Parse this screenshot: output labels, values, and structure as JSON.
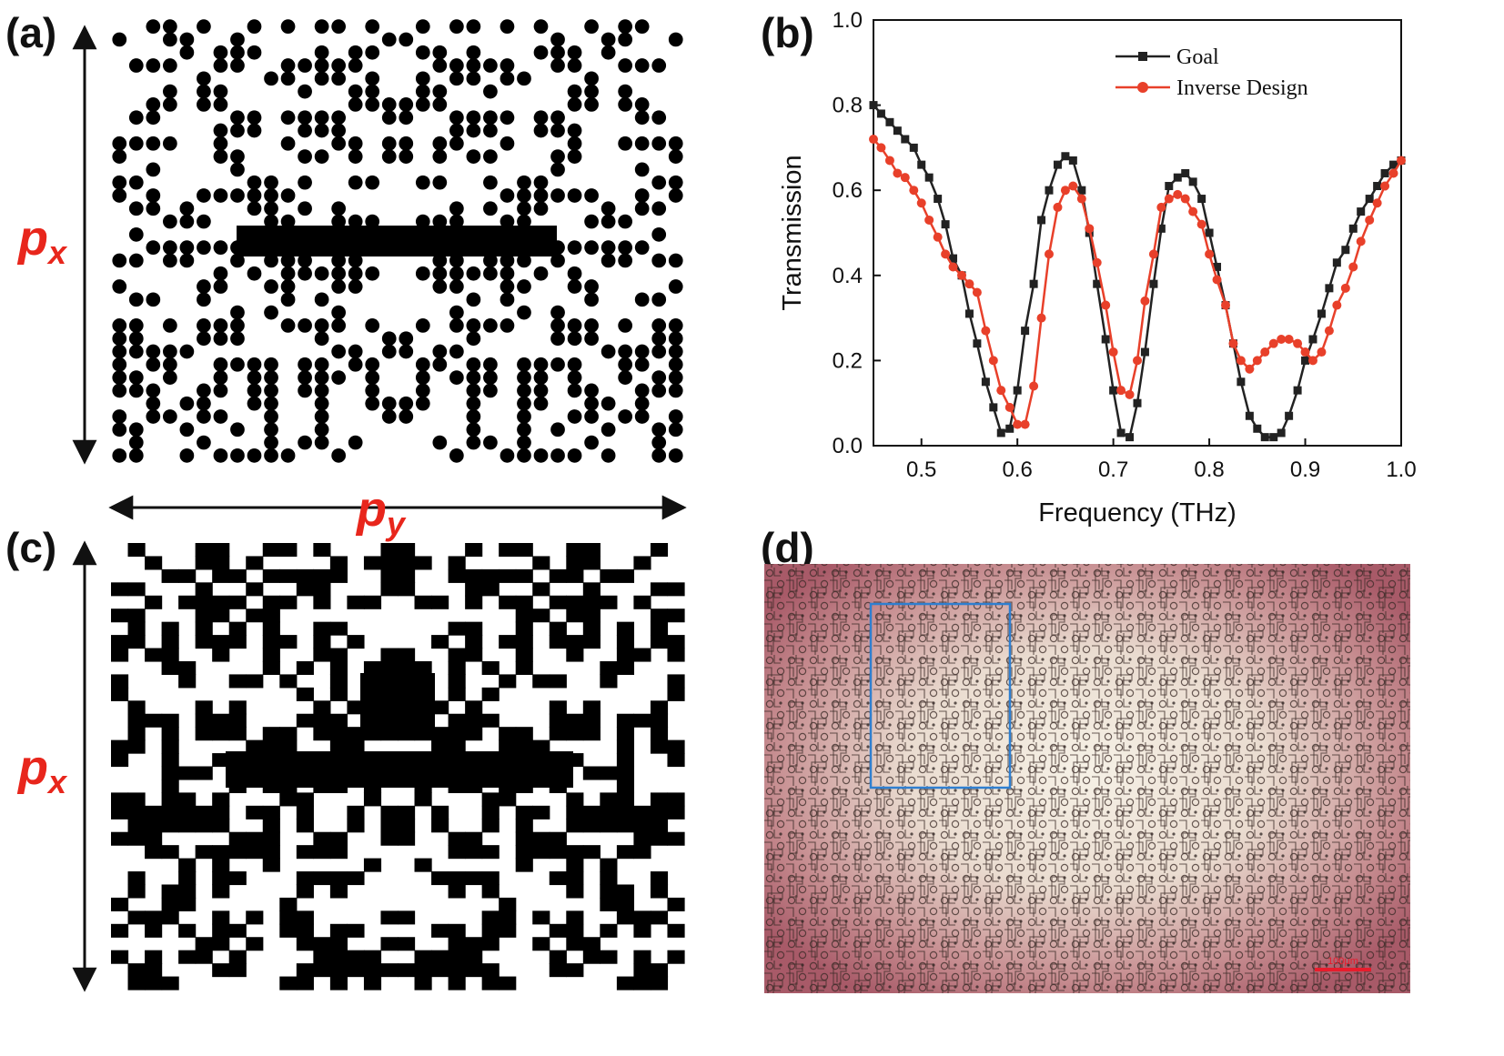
{
  "panels": {
    "a": "(a)",
    "b": "(b)",
    "c": "(c)",
    "d": "(d)"
  },
  "dimensions": {
    "px_main": "p",
    "px_sub": "x",
    "py_main": "p",
    "py_sub": "y"
  },
  "colors": {
    "goal": "#222222",
    "inverse_design": "#e8402a",
    "dimension_label": "#e8261c",
    "micrograph_edge": "#a85a68",
    "micrograph_center": "#f6f1e6",
    "roi_box": "#2f7fd0",
    "scale_bar": "#e81c2c"
  },
  "micrograph": {
    "scale_label": "100μm"
  },
  "chart_data": {
    "type": "line",
    "title": "",
    "xlabel": "Frequency (THz)",
    "ylabel": "Transmission",
    "xlim": [
      0.45,
      1.0
    ],
    "ylim": [
      0.0,
      1.0
    ],
    "xticks": [
      0.5,
      0.6,
      0.7,
      0.8,
      0.9,
      1.0
    ],
    "yticks": [
      0.0,
      0.2,
      0.4,
      0.6,
      0.8,
      1.0
    ],
    "xtick_labels": [
      "0.5",
      "0.6",
      "0.7",
      "0.8",
      "0.9",
      "1.0"
    ],
    "ytick_labels": [
      "0.0",
      "0.2",
      "0.4",
      "0.6",
      "0.8",
      "1.0"
    ],
    "legend_position": "top-center",
    "series": [
      {
        "name": "Goal",
        "marker": "square",
        "x": [
          0.45,
          0.458,
          0.467,
          0.475,
          0.483,
          0.492,
          0.5,
          0.508,
          0.517,
          0.525,
          0.533,
          0.542,
          0.55,
          0.558,
          0.567,
          0.575,
          0.583,
          0.592,
          0.6,
          0.608,
          0.617,
          0.625,
          0.633,
          0.642,
          0.65,
          0.658,
          0.667,
          0.675,
          0.683,
          0.692,
          0.7,
          0.708,
          0.717,
          0.725,
          0.733,
          0.742,
          0.75,
          0.758,
          0.767,
          0.775,
          0.783,
          0.792,
          0.8,
          0.808,
          0.817,
          0.825,
          0.833,
          0.842,
          0.85,
          0.858,
          0.867,
          0.875,
          0.883,
          0.892,
          0.9,
          0.908,
          0.917,
          0.925,
          0.933,
          0.942,
          0.95,
          0.958,
          0.967,
          0.975,
          0.983,
          0.992,
          1.0
        ],
        "y": [
          0.8,
          0.78,
          0.76,
          0.74,
          0.72,
          0.7,
          0.66,
          0.63,
          0.58,
          0.52,
          0.44,
          0.4,
          0.31,
          0.24,
          0.15,
          0.09,
          0.03,
          0.04,
          0.13,
          0.27,
          0.38,
          0.53,
          0.6,
          0.66,
          0.68,
          0.67,
          0.6,
          0.5,
          0.38,
          0.25,
          0.13,
          0.03,
          0.02,
          0.1,
          0.22,
          0.38,
          0.51,
          0.61,
          0.63,
          0.64,
          0.62,
          0.58,
          0.5,
          0.42,
          0.33,
          0.24,
          0.15,
          0.07,
          0.04,
          0.02,
          0.02,
          0.03,
          0.07,
          0.13,
          0.2,
          0.25,
          0.31,
          0.37,
          0.43,
          0.46,
          0.51,
          0.55,
          0.58,
          0.61,
          0.64,
          0.66,
          0.67
        ]
      },
      {
        "name": "Inverse Design",
        "marker": "circle",
        "x": [
          0.45,
          0.458,
          0.467,
          0.475,
          0.483,
          0.492,
          0.5,
          0.508,
          0.517,
          0.525,
          0.533,
          0.542,
          0.55,
          0.558,
          0.567,
          0.575,
          0.583,
          0.592,
          0.6,
          0.608,
          0.617,
          0.625,
          0.633,
          0.642,
          0.65,
          0.658,
          0.667,
          0.675,
          0.683,
          0.692,
          0.7,
          0.708,
          0.717,
          0.725,
          0.733,
          0.742,
          0.75,
          0.758,
          0.767,
          0.775,
          0.783,
          0.792,
          0.8,
          0.808,
          0.817,
          0.825,
          0.833,
          0.842,
          0.85,
          0.858,
          0.867,
          0.875,
          0.883,
          0.892,
          0.9,
          0.908,
          0.917,
          0.925,
          0.933,
          0.942,
          0.95,
          0.958,
          0.967,
          0.975,
          0.983,
          0.992,
          1.0
        ],
        "y": [
          0.72,
          0.7,
          0.67,
          0.64,
          0.63,
          0.6,
          0.57,
          0.53,
          0.49,
          0.45,
          0.42,
          0.4,
          0.38,
          0.36,
          0.27,
          0.2,
          0.13,
          0.09,
          0.05,
          0.05,
          0.14,
          0.3,
          0.45,
          0.56,
          0.6,
          0.61,
          0.58,
          0.51,
          0.43,
          0.33,
          0.22,
          0.13,
          0.12,
          0.2,
          0.34,
          0.45,
          0.56,
          0.58,
          0.59,
          0.58,
          0.55,
          0.52,
          0.45,
          0.39,
          0.33,
          0.24,
          0.2,
          0.18,
          0.2,
          0.22,
          0.24,
          0.25,
          0.25,
          0.24,
          0.22,
          0.2,
          0.22,
          0.27,
          0.33,
          0.37,
          0.42,
          0.48,
          0.53,
          0.57,
          0.61,
          0.64,
          0.67
        ]
      }
    ]
  }
}
